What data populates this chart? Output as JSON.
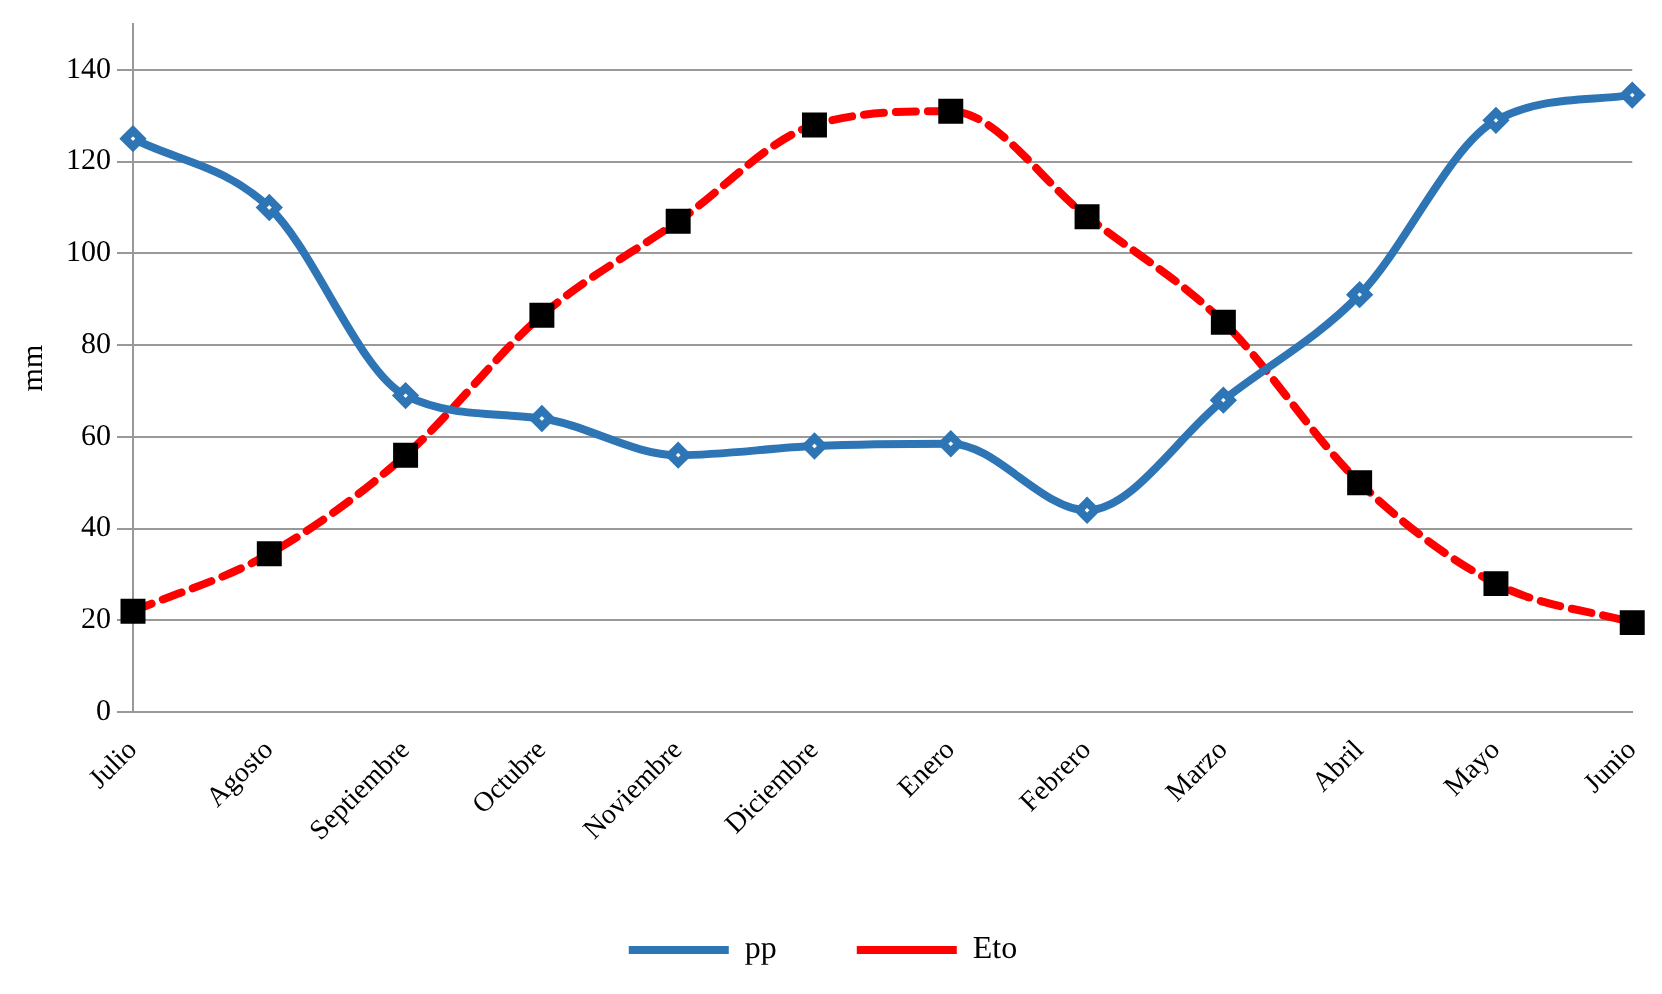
{
  "chart_data": {
    "type": "line",
    "ylabel": "mm",
    "categories": [
      "Julio",
      "Agosto",
      "Septiembre",
      "Octubre",
      "Noviembre",
      "Diciembre",
      "Enero",
      "Febrero",
      "Marzo",
      "Abril",
      "Mayo",
      "Junio"
    ],
    "series": [
      {
        "name": "pp",
        "color": "#2e75b6",
        "marker": "diamond",
        "line_style": "solid",
        "values": [
          125,
          110,
          69,
          64,
          56,
          58,
          58.5,
          44,
          68,
          91,
          129,
          134.5
        ]
      },
      {
        "name": "Eto",
        "color": "#ff0000",
        "marker": "square",
        "line_style": "dashed",
        "values": [
          22,
          34.5,
          56,
          86.5,
          107,
          128,
          131,
          108,
          85,
          50,
          28,
          19.5
        ]
      }
    ],
    "ylim": [
      0,
      150
    ],
    "yticks": [
      0,
      20,
      40,
      60,
      80,
      100,
      120,
      140
    ],
    "grid": "y",
    "legend": "bottom"
  }
}
